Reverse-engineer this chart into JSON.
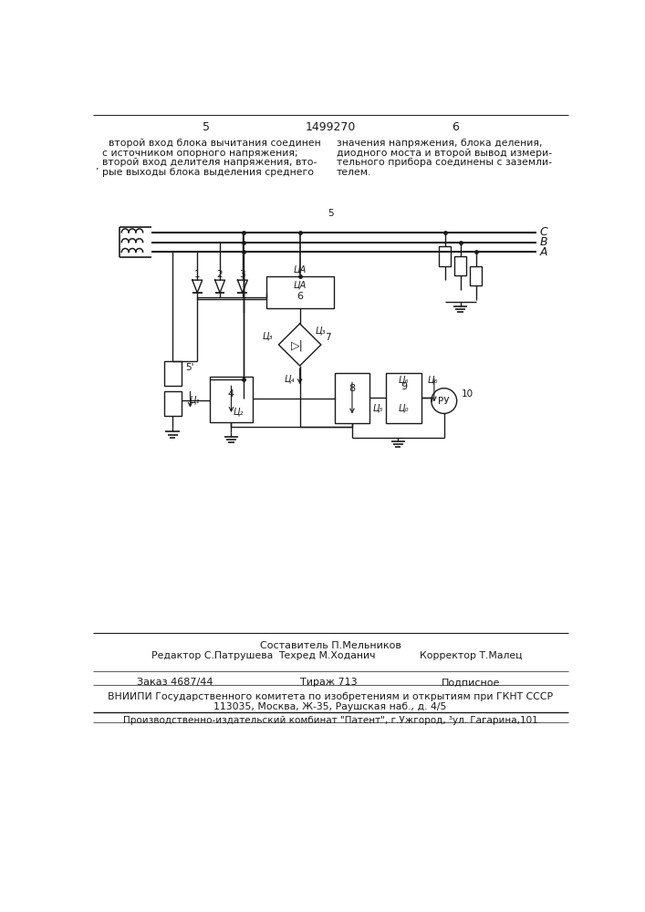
{
  "page_number_left": "5",
  "page_number_center": "1499270",
  "page_number_right": "6",
  "text_left_lines": [
    "    второй вход блока вычитания соединен",
    "  с источником опорного напряжения;",
    "  второй вход делителя напряжения, вто-",
    "’ рые выходы блока выделения среднего"
  ],
  "text_right_lines": [
    "значения напряжения, блока деления,",
    "диодного моста и второй вывод измери-",
    "тельного прибора соединены с заземли-",
    "телем."
  ],
  "footnote_number": "5",
  "composer_line": "Составитель П.Мельников",
  "editor_label": "Редактор С.Патрушева",
  "techred_label": "Техред М.Ходанич",
  "corrector_label": "Корректор Т.Малец",
  "order_label": "Заказ 4687/44",
  "tirazh_label": "Тираж 713",
  "podpisnoe_label": "Подписное",
  "vniip_line": "ВНИИПИ Государственного комитета по изобретениям и открытиям при ГКНТ СССР",
  "address_line": "113035, Москва, Ж-35, Раушская наб., д. 4/5",
  "publisher_line": "Производственно-издательский комбинат \"Патент\", г.Ужгород, ³ул. Гагарина,101",
  "bg_color": "#ffffff",
  "line_color": "#1a1a1a",
  "text_color": "#1a1a1a"
}
